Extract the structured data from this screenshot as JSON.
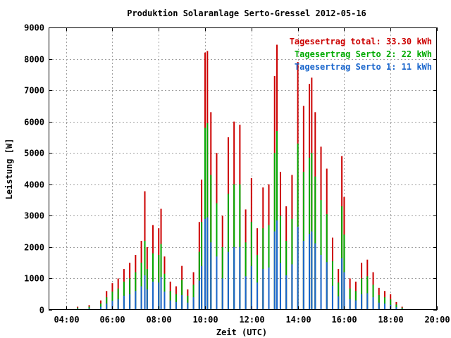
{
  "chart_data": {
    "type": "bar",
    "title": "Produktion Solaranlage Serto-Gressel 2012-05-16",
    "xlabel": "Zeit (UTC)",
    "ylabel": "Leistung [W]",
    "xlim": [
      3.25,
      20.0
    ],
    "ylim": [
      0,
      9000
    ],
    "x_ticks": [
      {
        "value": 4,
        "label": "04:00"
      },
      {
        "value": 6,
        "label": "06:00"
      },
      {
        "value": 8,
        "label": "08:00"
      },
      {
        "value": 10,
        "label": "10:00"
      },
      {
        "value": 12,
        "label": "12:00"
      },
      {
        "value": 14,
        "label": "14:00"
      },
      {
        "value": 16,
        "label": "16:00"
      },
      {
        "value": 18,
        "label": "18:00"
      },
      {
        "value": 20,
        "label": "20:00"
      }
    ],
    "y_ticks": [
      {
        "value": 0,
        "label": "0"
      },
      {
        "value": 1000,
        "label": "1000"
      },
      {
        "value": 2000,
        "label": "2000"
      },
      {
        "value": 3000,
        "label": "3000"
      },
      {
        "value": 4000,
        "label": "4000"
      },
      {
        "value": 5000,
        "label": "5000"
      },
      {
        "value": 6000,
        "label": "6000"
      },
      {
        "value": 7000,
        "label": "7000"
      },
      {
        "value": 8000,
        "label": "8000"
      },
      {
        "value": 9000,
        "label": "9000"
      }
    ],
    "grid": true,
    "legend_position": "top-right",
    "legend": [
      {
        "text": "Tagesertrag total: 33.30 kWh",
        "color": "#cc0000"
      },
      {
        "text": "Tagesertrag Serto 2: 22 kWh",
        "color": "#00aa00"
      },
      {
        "text": "Tagesertrag Serto 1: 11 kWh",
        "color": "#1a66cc"
      }
    ],
    "series": [
      {
        "name": "Tagesertrag total",
        "color": "#cc0000",
        "x": [
          4.5,
          5.0,
          5.5,
          5.75,
          6.0,
          6.25,
          6.5,
          6.75,
          7.0,
          7.25,
          7.4,
          7.5,
          7.75,
          8.0,
          8.1,
          8.25,
          8.5,
          8.75,
          9.0,
          9.25,
          9.5,
          9.75,
          9.85,
          10.0,
          10.1,
          10.25,
          10.5,
          10.75,
          11.0,
          11.25,
          11.5,
          11.75,
          12.0,
          12.25,
          12.5,
          12.75,
          13.0,
          13.1,
          13.25,
          13.5,
          13.75,
          14.0,
          14.25,
          14.5,
          14.6,
          14.75,
          15.0,
          15.25,
          15.5,
          15.75,
          15.9,
          16.0,
          16.25,
          16.5,
          16.75,
          17.0,
          17.25,
          17.5,
          17.75,
          18.0,
          18.25,
          18.5
        ],
        "values": [
          100,
          150,
          300,
          600,
          850,
          1000,
          1300,
          1500,
          1750,
          2200,
          3780,
          2000,
          2700,
          2600,
          3220,
          1700,
          900,
          750,
          1400,
          650,
          1200,
          2800,
          4150,
          8200,
          8250,
          6300,
          5000,
          3000,
          5500,
          6000,
          5900,
          3200,
          4200,
          2600,
          3900,
          4000,
          7450,
          8450,
          4400,
          3300,
          4300,
          7900,
          6500,
          7200,
          7400,
          6300,
          5200,
          4500,
          2300,
          1300,
          4900,
          3600,
          1000,
          900,
          1500,
          1600,
          1200,
          700,
          600,
          500,
          250,
          100
        ]
      },
      {
        "name": "Tagesertrag Serto 2",
        "color": "#00aa00",
        "x": [
          4.5,
          5.0,
          5.5,
          5.75,
          6.0,
          6.25,
          6.5,
          6.75,
          7.0,
          7.25,
          7.4,
          7.5,
          7.75,
          8.0,
          8.1,
          8.25,
          8.5,
          8.75,
          9.0,
          9.25,
          9.5,
          9.75,
          9.85,
          10.0,
          10.1,
          10.25,
          10.5,
          10.75,
          11.0,
          11.25,
          11.5,
          11.75,
          12.0,
          12.25,
          12.5,
          12.75,
          13.0,
          13.1,
          13.25,
          13.5,
          13.75,
          14.0,
          14.25,
          14.5,
          14.6,
          14.75,
          15.0,
          15.25,
          15.5,
          15.75,
          15.9,
          16.0,
          16.25,
          16.5,
          16.75,
          17.0,
          17.25,
          17.5,
          17.75,
          18.0,
          18.25,
          18.5
        ],
        "values": [
          70,
          100,
          200,
          400,
          580,
          680,
          900,
          1000,
          1200,
          1500,
          2200,
          1300,
          1800,
          1750,
          2100,
          1150,
          600,
          500,
          950,
          450,
          800,
          1850,
          2800,
          5800,
          5950,
          4300,
          3400,
          2000,
          3700,
          4000,
          4000,
          2150,
          2800,
          1750,
          2600,
          2700,
          5000,
          5700,
          3000,
          2200,
          2900,
          5300,
          4400,
          4850,
          5000,
          4250,
          3500,
          3050,
          1550,
          870,
          3300,
          2400,
          680,
          600,
          1000,
          1070,
          800,
          470,
          400,
          330,
          170,
          70
        ]
      },
      {
        "name": "Tagesertrag Serto 1",
        "color": "#1a66cc",
        "x": [
          4.5,
          5.0,
          5.5,
          5.75,
          6.0,
          6.25,
          6.5,
          6.75,
          7.0,
          7.25,
          7.4,
          7.5,
          7.75,
          8.0,
          8.1,
          8.25,
          8.5,
          8.75,
          9.0,
          9.25,
          9.5,
          9.75,
          9.85,
          10.0,
          10.1,
          10.25,
          10.5,
          10.75,
          11.0,
          11.25,
          11.5,
          11.75,
          12.0,
          12.25,
          12.5,
          12.75,
          13.0,
          13.1,
          13.25,
          13.5,
          13.75,
          14.0,
          14.25,
          14.5,
          14.6,
          14.75,
          15.0,
          15.25,
          15.5,
          15.75,
          15.9,
          16.0,
          16.25,
          16.5,
          16.75,
          17.0,
          17.25,
          17.5,
          17.75,
          18.0,
          18.25,
          18.5
        ],
        "values": [
          35,
          50,
          100,
          200,
          290,
          340,
          450,
          500,
          600,
          750,
          1100,
          650,
          900,
          870,
          1050,
          580,
          300,
          250,
          470,
          230,
          400,
          930,
          1400,
          2900,
          2950,
          2150,
          1700,
          1000,
          1850,
          2000,
          2000,
          1070,
          1400,
          870,
          1300,
          1350,
          2500,
          2850,
          1500,
          1100,
          1450,
          2650,
          2200,
          2420,
          2500,
          2120,
          1750,
          1520,
          770,
          430,
          1650,
          1200,
          340,
          300,
          500,
          530,
          400,
          230,
          200,
          160,
          85,
          35
        ]
      }
    ]
  }
}
